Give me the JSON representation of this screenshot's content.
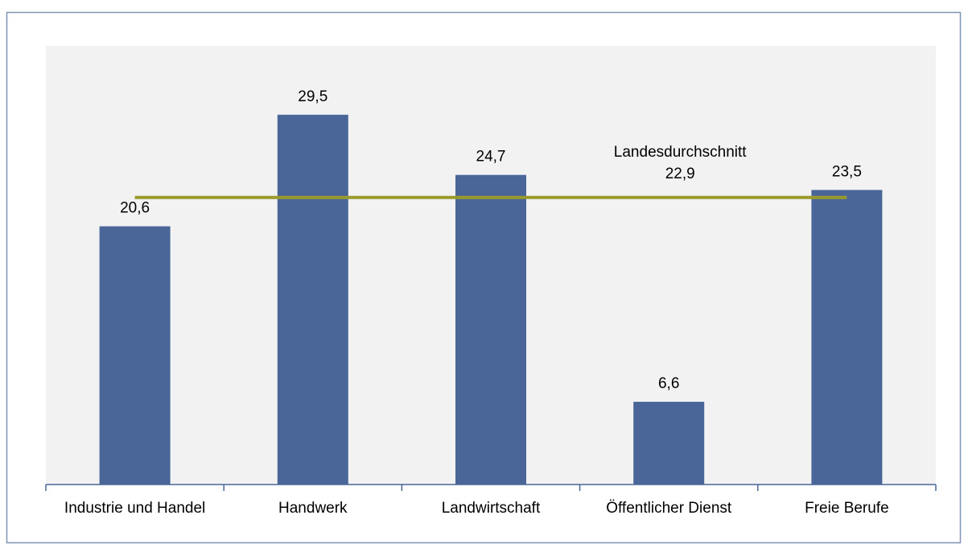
{
  "chart_data": {
    "type": "bar",
    "categories": [
      "Industrie und Handel",
      "Handwerk",
      "Landwirtschaft",
      "Öffentlicher Dienst",
      "Freie Berufe"
    ],
    "values": [
      20.6,
      29.5,
      24.7,
      6.6,
      23.5
    ],
    "value_labels": [
      "20,6",
      "29,5",
      "24,7",
      "6,6",
      "23,5"
    ],
    "color": "#4a6699",
    "ylim": [
      0,
      35
    ],
    "reference_line": {
      "label": "Landesdurchschnitt",
      "value": 22.9,
      "value_label": "22,9",
      "color": "#9a9a2c"
    }
  }
}
